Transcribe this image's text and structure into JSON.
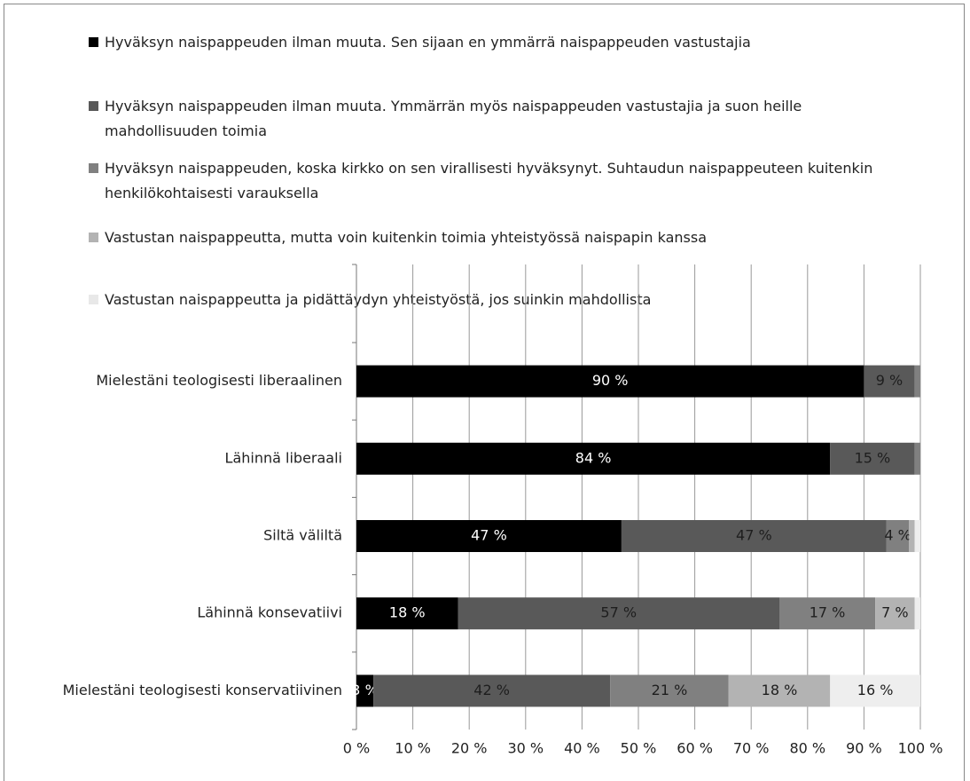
{
  "chart_data": {
    "type": "stacked_bar_horizontal",
    "categories": [
      "Mielestäni teologisesti liberaalinen",
      "Lähinnä liberaali",
      "Siltä väliltä",
      "Lähinnä konsevatiivi",
      "Mielestäni teologisesti konservatiivinen"
    ],
    "series": [
      {
        "name": "Hyväksyn naispappeuden ilman muuta. Sen sijaan en ymmärrä naispappeuden vastustajia",
        "color": "#000000",
        "label_color": "#ffffff",
        "values": [
          90,
          84,
          47,
          18,
          3
        ],
        "value_labels": [
          "90 %",
          "84 %",
          "47 %",
          "18 %",
          "3 %"
        ]
      },
      {
        "name": "Hyväksyn naispappeuden ilman muuta. Ymmärrän myös naispappeuden vastustajia ja suon heille mahdollisuuden toimia",
        "color": "#595959",
        "label_color": "#1e1e1e",
        "values": [
          9,
          15,
          47,
          57,
          42
        ],
        "value_labels": [
          "9 %",
          "15 %",
          "47 %",
          "57 %",
          "42 %"
        ]
      },
      {
        "name": "Hyväksyn naispappeuden, koska kirkko on sen virallisesti hyväksynyt. Suhtaudun naispappeuteen kuitenkin henkilökohtaisesti varauksella",
        "color": "#808080",
        "label_color": "#1e1e1e",
        "values": [
          1,
          1,
          4,
          17,
          21
        ],
        "value_labels": [
          null,
          null,
          "4 %",
          "17 %",
          "21 %"
        ]
      },
      {
        "name": "Vastustan naispappeutta, mutta voin kuitenkin toimia yhteistyössä naispapin kanssa",
        "color": "#b3b3b3",
        "label_color": "#1e1e1e",
        "values": [
          0,
          0,
          1,
          7,
          18
        ],
        "value_labels": [
          null,
          null,
          null,
          "7 %",
          "18 %"
        ]
      },
      {
        "name": "Vastustan naispappeutta ja pidättäydyn yhteistyöstä, jos suinkin mahdollista",
        "color": "#eeeeee",
        "label_color": "#1e1e1e",
        "values": [
          0,
          0,
          1,
          1,
          16
        ],
        "value_labels": [
          null,
          null,
          null,
          null,
          "16 %"
        ]
      }
    ],
    "xlim": [
      0,
      100
    ],
    "xticks": [
      {
        "value": 0,
        "label": "0 %"
      },
      {
        "value": 10,
        "label": "10 %"
      },
      {
        "value": 20,
        "label": "20 %"
      },
      {
        "value": 30,
        "label": "30 %"
      },
      {
        "value": 40,
        "label": "40 %"
      },
      {
        "value": 50,
        "label": "50 %"
      },
      {
        "value": 60,
        "label": "60 %"
      },
      {
        "value": 70,
        "label": "70 %"
      },
      {
        "value": 80,
        "label": "80 %"
      },
      {
        "value": 90,
        "label": "90 %"
      },
      {
        "value": 100,
        "label": "100 %"
      }
    ],
    "grid": true,
    "legend": "top"
  }
}
